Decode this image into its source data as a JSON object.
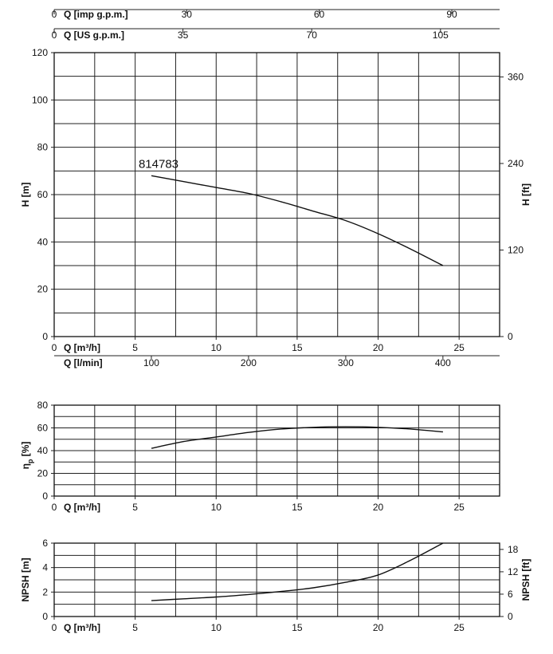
{
  "chart_data": [
    {
      "type": "line",
      "id": "head",
      "series_label": "814783",
      "xlabel": "Q [m³/h]",
      "ylabel": "H [m]",
      "ylabel_right": "H [ft]",
      "xlim": [
        0,
        27.5
      ],
      "ylim": [
        0,
        120
      ],
      "xticks": [
        "0",
        "5",
        "10",
        "15",
        "20",
        "25"
      ],
      "xtick_values": [
        0,
        5,
        10,
        15,
        20,
        25
      ],
      "yticks": [
        0,
        20,
        40,
        60,
        80,
        100,
        120
      ],
      "yticks_right": [
        0,
        120,
        240,
        360
      ],
      "top_axes": [
        {
          "label": "Q [imp g.p.m.]",
          "ticks": [
            "0",
            "30",
            "60",
            "90"
          ],
          "tick_values": [
            0,
            8.18,
            16.36,
            24.55
          ]
        },
        {
          "label": "Q [US g.p.m.]",
          "ticks": [
            "0",
            "35",
            "70",
            "105"
          ],
          "tick_values": [
            0,
            7.95,
            15.9,
            23.85
          ]
        }
      ],
      "bottom_axis2": {
        "label": "Q [l/min]",
        "ticks": [
          "100",
          "200",
          "300",
          "400"
        ],
        "tick_values": [
          6,
          12,
          18,
          24
        ]
      },
      "grid": true,
      "x": [
        6,
        8,
        10,
        12,
        14,
        16,
        18,
        20,
        22,
        24
      ],
      "y": [
        68,
        65.5,
        63,
        60.5,
        57,
        53,
        49,
        43.5,
        37,
        30
      ]
    },
    {
      "type": "line",
      "id": "efficiency",
      "xlabel": "Q [m³/h]",
      "ylabel": "η_p [%]",
      "xlim": [
        0,
        27.5
      ],
      "ylim": [
        0,
        80
      ],
      "xticks": [
        "0",
        "5",
        "10",
        "15",
        "20",
        "25"
      ],
      "xtick_values": [
        0,
        5,
        10,
        15,
        20,
        25
      ],
      "yticks": [
        0,
        20,
        40,
        60,
        80
      ],
      "grid": true,
      "x": [
        6,
        8,
        10,
        12,
        14,
        16,
        18,
        20,
        22,
        24
      ],
      "y": [
        42,
        48,
        52,
        56,
        59,
        60.5,
        61,
        60.5,
        59,
        56.5
      ]
    },
    {
      "type": "line",
      "id": "npsh",
      "xlabel": "Q [m³/h]",
      "ylabel": "NPSH [m]",
      "ylabel_right": "NPSH [ft]",
      "xlim": [
        0,
        27.5
      ],
      "ylim": [
        0,
        6
      ],
      "xticks": [
        "0",
        "5",
        "10",
        "15",
        "20",
        "25"
      ],
      "xtick_values": [
        0,
        5,
        10,
        15,
        20,
        25
      ],
      "yticks": [
        0,
        2,
        4,
        6
      ],
      "yticks_right": [
        0,
        6,
        12,
        18
      ],
      "grid": true,
      "x": [
        6,
        8,
        10,
        12,
        14,
        16,
        18,
        20,
        22,
        24
      ],
      "y": [
        1.3,
        1.45,
        1.6,
        1.8,
        2.05,
        2.35,
        2.8,
        3.4,
        4.6,
        6.0
      ]
    }
  ]
}
